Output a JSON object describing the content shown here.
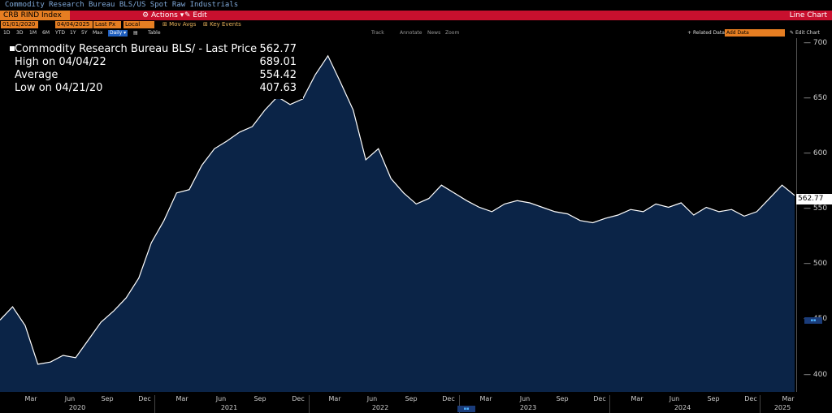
{
  "header": {
    "subtitle": "Commodity Research Bureau BLS/US Spot Raw Industrials",
    "ticker": "CRB RIND Index",
    "actions_label": "Actions",
    "edit_label": "Edit",
    "chart_type": "Line Chart"
  },
  "controls": {
    "start_date": "01/01/2020",
    "end_date": "04/04/2025",
    "field": "Last Px",
    "currency": "Local CCY",
    "mov_avgs": "Mov Avgs",
    "key_events": "Key Events",
    "periods": [
      "1D",
      "3D",
      "1M",
      "6M",
      "YTD",
      "1Y",
      "5Y",
      "Max"
    ],
    "frequency": "Daily",
    "table_label": "Table",
    "tools": [
      "Track",
      "Annotate",
      "News",
      "Zoom"
    ],
    "related_data": "Related Data",
    "add_data": "Add Data",
    "edit_chart": "Edit Chart"
  },
  "legend": {
    "rows": [
      {
        "label": "Commodity Research Bureau BLS/ - Last Price",
        "value": "562.77"
      },
      {
        "label": "High on 04/04/22",
        "value": "689.01"
      },
      {
        "label": "Average",
        "value": "554.42"
      },
      {
        "label": "Low on 04/21/20",
        "value": "407.63"
      }
    ]
  },
  "last_price_tag": "562.77",
  "colors": {
    "line": "#ffffff",
    "fill": "#0b2447",
    "accent": "#e67e22",
    "bar": "#c8102e"
  },
  "chart_data": {
    "type": "area",
    "title": "Commodity Research Bureau BLS/US Spot Raw Industrials",
    "ylim": [
      385,
      705
    ],
    "yticks": [
      400,
      450,
      500,
      550,
      600,
      650,
      700
    ],
    "x_month_labels": [
      "Mar",
      "Jun",
      "Sep",
      "Dec",
      "Mar",
      "Jun",
      "Sep",
      "Dec",
      "Mar",
      "Jun",
      "Sep",
      "Dec",
      "Mar",
      "Jun",
      "Sep",
      "Dec",
      "Mar",
      "Jun",
      "Sep",
      "Dec",
      "Mar"
    ],
    "x_year_labels": [
      "2020",
      "2021",
      "2022",
      "2023",
      "2024",
      "2025"
    ],
    "series": [
      {
        "name": "Commodity Research Bureau BLS/ - Last Price",
        "x": [
          "2020-01",
          "2020-02",
          "2020-03",
          "2020-04",
          "2020-05",
          "2020-06",
          "2020-07",
          "2020-08",
          "2020-09",
          "2020-10",
          "2020-11",
          "2020-12",
          "2021-01",
          "2021-02",
          "2021-03",
          "2021-04",
          "2021-05",
          "2021-06",
          "2021-07",
          "2021-08",
          "2021-09",
          "2021-10",
          "2021-11",
          "2021-12",
          "2022-01",
          "2022-02",
          "2022-03",
          "2022-04",
          "2022-05",
          "2022-06",
          "2022-07",
          "2022-08",
          "2022-09",
          "2022-10",
          "2022-11",
          "2022-12",
          "2023-01",
          "2023-02",
          "2023-03",
          "2023-04",
          "2023-05",
          "2023-06",
          "2023-07",
          "2023-08",
          "2023-09",
          "2023-10",
          "2023-11",
          "2023-12",
          "2024-01",
          "2024-02",
          "2024-03",
          "2024-04",
          "2024-05",
          "2024-06",
          "2024-07",
          "2024-08",
          "2024-09",
          "2024-10",
          "2024-11",
          "2024-12",
          "2025-01",
          "2025-02",
          "2025-03",
          "2025-04"
        ],
        "values": [
          450,
          462,
          445,
          410,
          412,
          418,
          416,
          432,
          448,
          458,
          470,
          488,
          520,
          540,
          565,
          568,
          590,
          605,
          612,
          620,
          625,
          640,
          652,
          645,
          650,
          672,
          689,
          665,
          640,
          595,
          605,
          578,
          565,
          555,
          560,
          572,
          565,
          558,
          552,
          548,
          555,
          558,
          556,
          552,
          548,
          546,
          540,
          538,
          542,
          545,
          550,
          548,
          555,
          552,
          556,
          545,
          552,
          548,
          550,
          544,
          548,
          560,
          572,
          562.77
        ]
      }
    ]
  }
}
